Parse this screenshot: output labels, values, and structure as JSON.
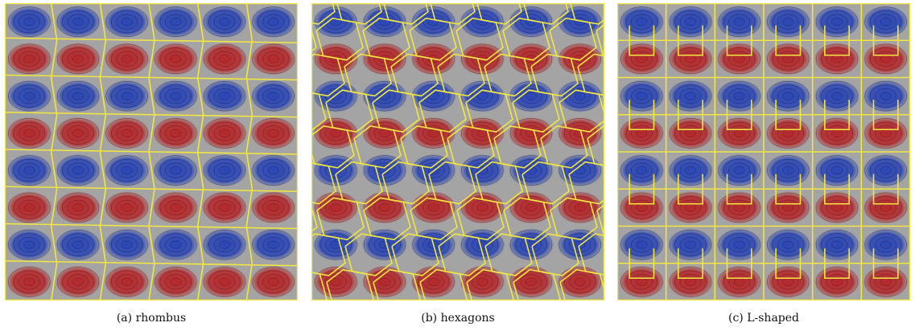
{
  "figure": {
    "panels": [
      {
        "id": "rhombus",
        "caption": "(a) rhombus"
      },
      {
        "id": "hexagons",
        "caption": "(b) hexagons"
      },
      {
        "id": "lshaped",
        "caption": "(c) L-shaped"
      }
    ],
    "colors": {
      "background": "#a4a4a4",
      "red": "#b4282b",
      "blue": "#2b46b5",
      "partition_lines": "#f2e640",
      "contours_red": "#5a1010",
      "contours_blue": "#10184f"
    }
  }
}
